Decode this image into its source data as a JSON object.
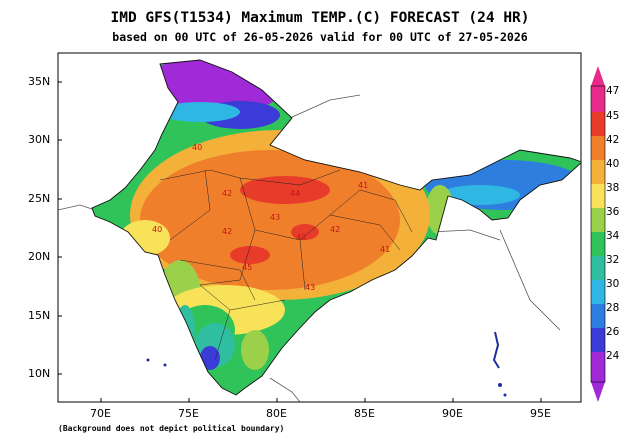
{
  "title": "IMD GFS(T1534) Maximum TEMP.(C) FORECAST (24 HR)",
  "subtitle": "based on 00 UTC of 26-05-2026 valid for 00 UTC of 27-05-2026",
  "footnote": "(Background does not depict political boundary)",
  "axes": {
    "lat_labels": [
      "35N",
      "30N",
      "25N",
      "20N",
      "15N",
      "10N"
    ],
    "lon_labels": [
      "70E",
      "75E",
      "80E",
      "85E",
      "90E",
      "95E"
    ]
  },
  "legend": {
    "levels": [
      "47",
      "45",
      "42",
      "40",
      "38",
      "36",
      "34",
      "32",
      "30",
      "28",
      "26",
      "24"
    ],
    "colors": {
      "c47": "#e62b8b",
      "c45": "#e83c2a",
      "c42": "#f07f2c",
      "c40": "#f3b13a",
      "c38": "#f7e25a",
      "c36": "#9bd14a",
      "c34": "#2fc35a",
      "c32": "#2fbfa0",
      "c30": "#2fb6e2",
      "c28": "#2e7ee0",
      "c26": "#3b3bd8",
      "c24": "#a02ad8"
    }
  },
  "map_labels": {
    "values": [
      "40",
      "41",
      "42",
      "43",
      "44",
      "43",
      "40",
      "42",
      "45",
      "41",
      "42",
      "43"
    ]
  }
}
